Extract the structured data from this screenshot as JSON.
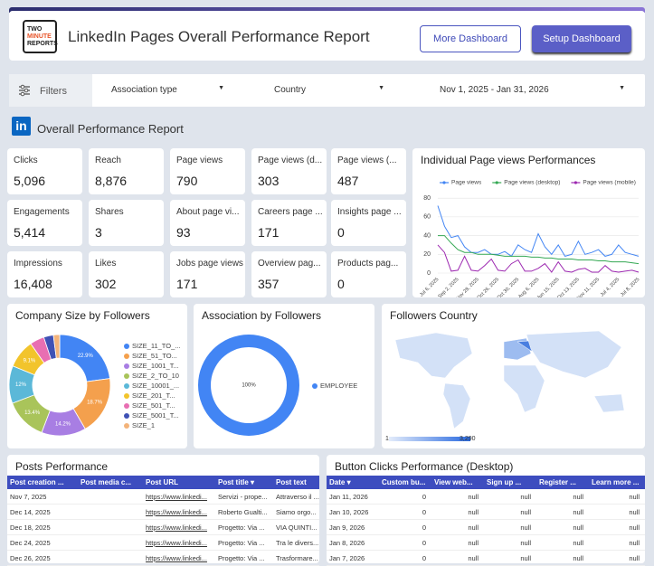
{
  "header": {
    "logo_lines": [
      "TWO",
      "MINUTE",
      "REPORTS"
    ],
    "title": "LinkedIn Pages Overall Performance Report",
    "buttons": [
      "More Dashboard",
      "Setup Dashboard"
    ]
  },
  "filters": {
    "label": "Filters",
    "dropdowns": [
      "Association type",
      "Country",
      "Nov 1, 2025 - Jan 31, 2026"
    ]
  },
  "section_title": "Overall Performance Report",
  "kpis": [
    {
      "label": "Clicks",
      "value": "5,096"
    },
    {
      "label": "Reach",
      "value": "8,876"
    },
    {
      "label": "Page views",
      "value": "790"
    },
    {
      "label": "Page views (d...",
      "value": "303"
    },
    {
      "label": "Page views (...",
      "value": "487"
    },
    {
      "label": "Engagements",
      "value": "5,414"
    },
    {
      "label": "Shares",
      "value": "3"
    },
    {
      "label": "About page vi...",
      "value": "93"
    },
    {
      "label": "Careers page ...",
      "value": "171"
    },
    {
      "label": "Insights page ...",
      "value": "0"
    },
    {
      "label": "Impressions",
      "value": "16,408"
    },
    {
      "label": "Likes",
      "value": "302"
    },
    {
      "label": "Jobs page views",
      "value": "171"
    },
    {
      "label": "Overview pag...",
      "value": "357"
    },
    {
      "label": "Products pag...",
      "value": "0"
    }
  ],
  "chart_data": [
    {
      "type": "line",
      "title": "Individual Page views Performances",
      "categories": [
        "Jul 6, 2025",
        null,
        null,
        "Sep 2, 2025",
        null,
        null,
        "Nov 28, 2025",
        null,
        null,
        "Oct 26, 2025",
        null,
        null,
        "Oct 30, 2025",
        null,
        null,
        "Aug 6, 2025",
        null,
        null,
        "Jun 15, 2025",
        null,
        null,
        "Oct 13, 2025",
        null,
        null,
        "Nov 11, 2025",
        null,
        null,
        "Jul 4, 2025",
        null,
        null,
        "Jul 8, 2025"
      ],
      "series": [
        {
          "name": "Page views",
          "color": "#4285f4",
          "values": [
            72,
            50,
            38,
            40,
            28,
            22,
            22,
            25,
            20,
            20,
            23,
            18,
            30,
            25,
            22,
            42,
            28,
            20,
            30,
            18,
            20,
            34,
            20,
            22,
            25,
            18,
            20,
            30,
            22,
            20,
            18
          ]
        },
        {
          "name": "Page views (desktop)",
          "color": "#34a853",
          "values": [
            40,
            40,
            32,
            25,
            22,
            22,
            20,
            20,
            20,
            19,
            18,
            18,
            18,
            18,
            17,
            17,
            16,
            16,
            15,
            15,
            15,
            14,
            14,
            14,
            13,
            13,
            12,
            12,
            12,
            11,
            10
          ]
        },
        {
          "name": "Page views (mobile)",
          "color": "#9c27b0",
          "values": [
            30,
            22,
            2,
            3,
            18,
            3,
            2,
            8,
            15,
            3,
            2,
            10,
            14,
            2,
            2,
            5,
            10,
            1,
            12,
            2,
            1,
            4,
            5,
            1,
            1,
            8,
            2,
            1,
            2,
            3,
            1
          ]
        }
      ],
      "ylim": [
        0,
        85
      ],
      "yticks": [
        0,
        20,
        40,
        60,
        80
      ],
      "grid": true
    },
    {
      "type": "pie",
      "title": "Company Size by Followers",
      "categories": [
        "SIZE_11_TO_...",
        "SIZE_51_TO...",
        "SIZE_1001_T...",
        "SIZE_2_TO_10",
        "SIZE_10001_...",
        "SIZE_201_T...",
        "SIZE_501_T...",
        "SIZE_5001_T...",
        "SIZE_1"
      ],
      "values": [
        22.9,
        18.7,
        14.2,
        13.4,
        12,
        9.1,
        4.6,
        3.1,
        2
      ],
      "value_labels": [
        "22.9%",
        "18.7%",
        "14.2%",
        "13.4%",
        "12%",
        "9.1%",
        null,
        null,
        null
      ],
      "colors": [
        "#4285f4",
        "#f4a04d",
        "#a87ee3",
        "#a9c45a",
        "#5bb8d8",
        "#f2c42c",
        "#e86fb2",
        "#3f51b5",
        "#f3b37a"
      ]
    },
    {
      "type": "pie",
      "title": "Association by Followers",
      "categories": [
        "EMPLOYEE"
      ],
      "values": [
        100
      ],
      "value_labels": [
        "100%"
      ],
      "colors": [
        "#4285f4"
      ]
    }
  ],
  "map": {
    "title": "Followers Country",
    "legend_min": "1",
    "legend_max": "3,290"
  },
  "tables": [
    {
      "title": "Posts Performance",
      "columns": [
        "Post creation ...",
        "Post media c...",
        "Post URL",
        "Post title ▾",
        "Post text"
      ],
      "rows": [
        [
          "Nov 7, 2025",
          null,
          "https://www.linkedi...",
          "Servizi - prope...",
          "Attraverso il ..."
        ],
        [
          "Dec 14, 2025",
          null,
          "https://www.linkedi...",
          "Roberto Gualti...",
          "Siamo orgo..."
        ],
        [
          "Dec 18, 2025",
          null,
          "https://www.linkedi...",
          "Progetto: Via ...",
          "VIA QUINTI..."
        ],
        [
          "Dec 24, 2025",
          null,
          "https://www.linkedi...",
          "Progetto: Via ...",
          "Tra le divers..."
        ],
        [
          "Dec 26, 2025",
          null,
          "https://www.linkedi...",
          "Progetto: Via ...",
          "Trasformare..."
        ]
      ]
    },
    {
      "title": "Button Clicks Performance (Desktop)",
      "columns": [
        "Date ▾",
        "Custom bu...",
        "View web...",
        "Sign up ...",
        "Register ...",
        "Learn more ..."
      ],
      "rows": [
        [
          "Jan 11, 2026",
          "0",
          "null",
          "null",
          "null",
          "null"
        ],
        [
          "Jan 10, 2026",
          "0",
          "null",
          "null",
          "null",
          "null"
        ],
        [
          "Jan 9, 2026",
          "0",
          "null",
          "null",
          "null",
          "null"
        ],
        [
          "Jan 8, 2026",
          "0",
          "null",
          "null",
          "null",
          "null"
        ],
        [
          "Jan 7, 2026",
          "0",
          "null",
          "null",
          "null",
          "null"
        ]
      ]
    }
  ]
}
